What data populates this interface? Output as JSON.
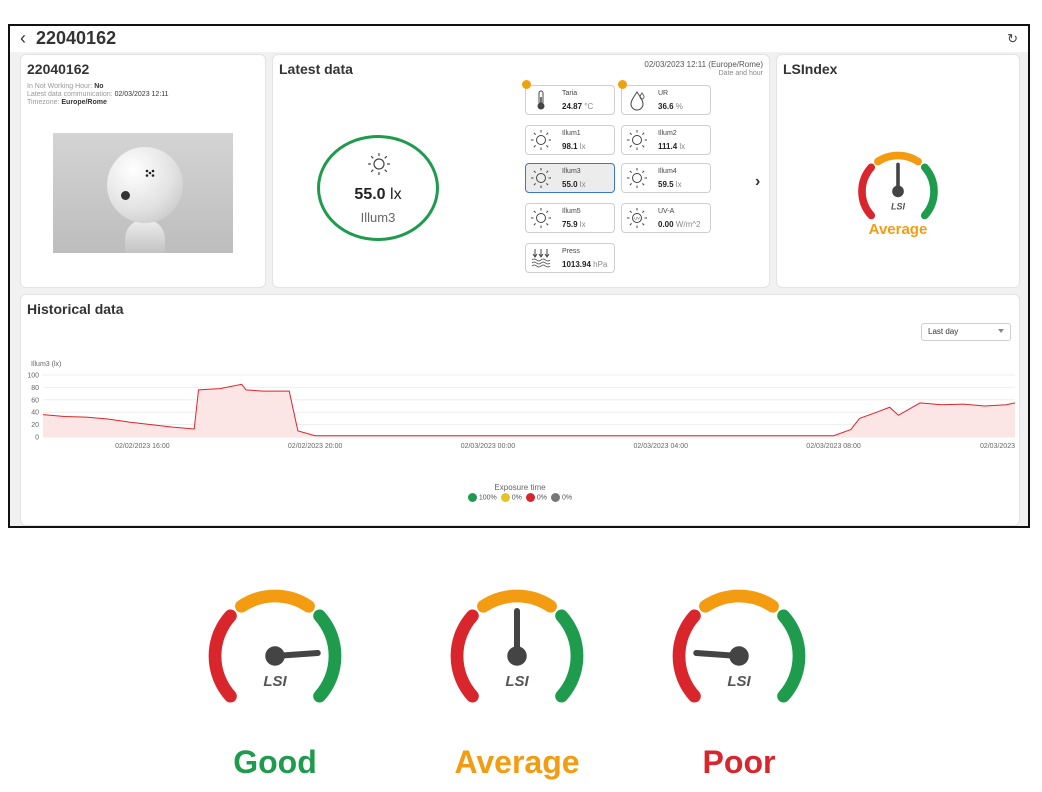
{
  "header": {
    "back_symbol": "‹",
    "title": "22040162",
    "refresh_symbol": "↻"
  },
  "device_card": {
    "title": "22040162",
    "info": [
      {
        "label": "In Not Working Hour: ",
        "value": "No"
      },
      {
        "label": "Latest data communication: ",
        "value": "02/03/2023 12:11"
      },
      {
        "label": "Timezone: ",
        "value": "Europe/Rome"
      }
    ]
  },
  "latest": {
    "title": "Latest data",
    "datetime": "02/03/2023 12:11 (Europe/Rome)",
    "datetime_sub": "Date and hour",
    "main": {
      "value": "55.0",
      "unit": " lx",
      "label": "Illum3"
    },
    "sensors": [
      {
        "name": "Taria",
        "value": "24.87",
        "unit": " °C",
        "icon": "thermometer-icon",
        "alert": true
      },
      {
        "name": "UR",
        "value": "36.6",
        "unit": " %",
        "icon": "humidity-drop-icon",
        "alert": true
      },
      {
        "name": "Illum1",
        "value": "98.1",
        "unit": " lx",
        "icon": "sun-icon",
        "alert": false
      },
      {
        "name": "Illum2",
        "value": "111.4",
        "unit": " lx",
        "icon": "sun-icon",
        "alert": false
      },
      {
        "name": "Illum3",
        "value": "55.0",
        "unit": " lx",
        "icon": "sun-icon",
        "alert": false,
        "selected": true
      },
      {
        "name": "Illum4",
        "value": "59.5",
        "unit": " lx",
        "icon": "sun-icon",
        "alert": false
      },
      {
        "name": "Illum5",
        "value": "75.9",
        "unit": " lx",
        "icon": "sun-icon",
        "alert": false
      },
      {
        "name": "UV-A",
        "value": "0.00",
        "unit": " W/m^2",
        "icon": "uva-sun-icon",
        "alert": false
      },
      {
        "name": "Press",
        "value": "1013.94",
        "unit": " hPa",
        "icon": "pressure-icon",
        "alert": false
      }
    ],
    "next_symbol": "›"
  },
  "lsindex": {
    "title": "LSIndex",
    "status": "Average",
    "needle": "up",
    "logo_text": "LSI"
  },
  "historical": {
    "title": "Historical data",
    "range": "Last day",
    "legend_title": "Exposure time",
    "legend": [
      {
        "label": "100%",
        "color": "#1e9b4c"
      },
      {
        "label": "0%",
        "color": "#e6c229"
      },
      {
        "label": "0%",
        "color": "#d9262c"
      },
      {
        "label": "0%",
        "color": "#777777"
      }
    ]
  },
  "chart_data": {
    "type": "line",
    "ylabel": "Illum3 (lx)",
    "yticks": [
      0,
      20,
      40,
      60,
      80,
      100
    ],
    "ylim": [
      0,
      100
    ],
    "xlim_hours": [
      13.7,
      36.2
    ],
    "xticks": [
      {
        "label": "02/02/2023 16:00",
        "h": 16
      },
      {
        "label": "02/02/2023 20:00",
        "h": 20
      },
      {
        "label": "02/03/2023 00:00",
        "h": 24
      },
      {
        "label": "02/03/2023 04:00",
        "h": 28
      },
      {
        "label": "02/03/2023 08:00",
        "h": 32
      },
      {
        "label": "02/03/2023",
        "h": 36.2
      }
    ],
    "series": [
      {
        "color": "#d9262c",
        "x": [
          13.7,
          14.2,
          14.7,
          15.2,
          15.7,
          16.2,
          16.7,
          17.2,
          17.3,
          17.8,
          18.3,
          18.4,
          18.8,
          19.3,
          19.4,
          19.6,
          20,
          22,
          24,
          26,
          28,
          30,
          31,
          32,
          32.4,
          32.6,
          33,
          33.3,
          33.5,
          34,
          34.5,
          35,
          35.5,
          36,
          36.2
        ],
        "y": [
          36,
          33,
          32,
          29,
          24,
          20,
          16,
          13,
          76,
          78,
          85,
          76,
          74,
          74,
          74,
          10,
          2,
          2,
          2,
          2,
          2,
          2,
          2,
          2,
          12,
          30,
          40,
          48,
          35,
          55,
          52,
          53,
          50,
          52,
          55
        ]
      }
    ]
  },
  "gauges": [
    {
      "label": "Good",
      "needle": "right",
      "color": "#1e9b4c"
    },
    {
      "label": "Average",
      "needle": "up",
      "color": "#f39c12"
    },
    {
      "label": "Poor",
      "needle": "left",
      "color": "#d9262c"
    }
  ],
  "logo_text": "LSI"
}
